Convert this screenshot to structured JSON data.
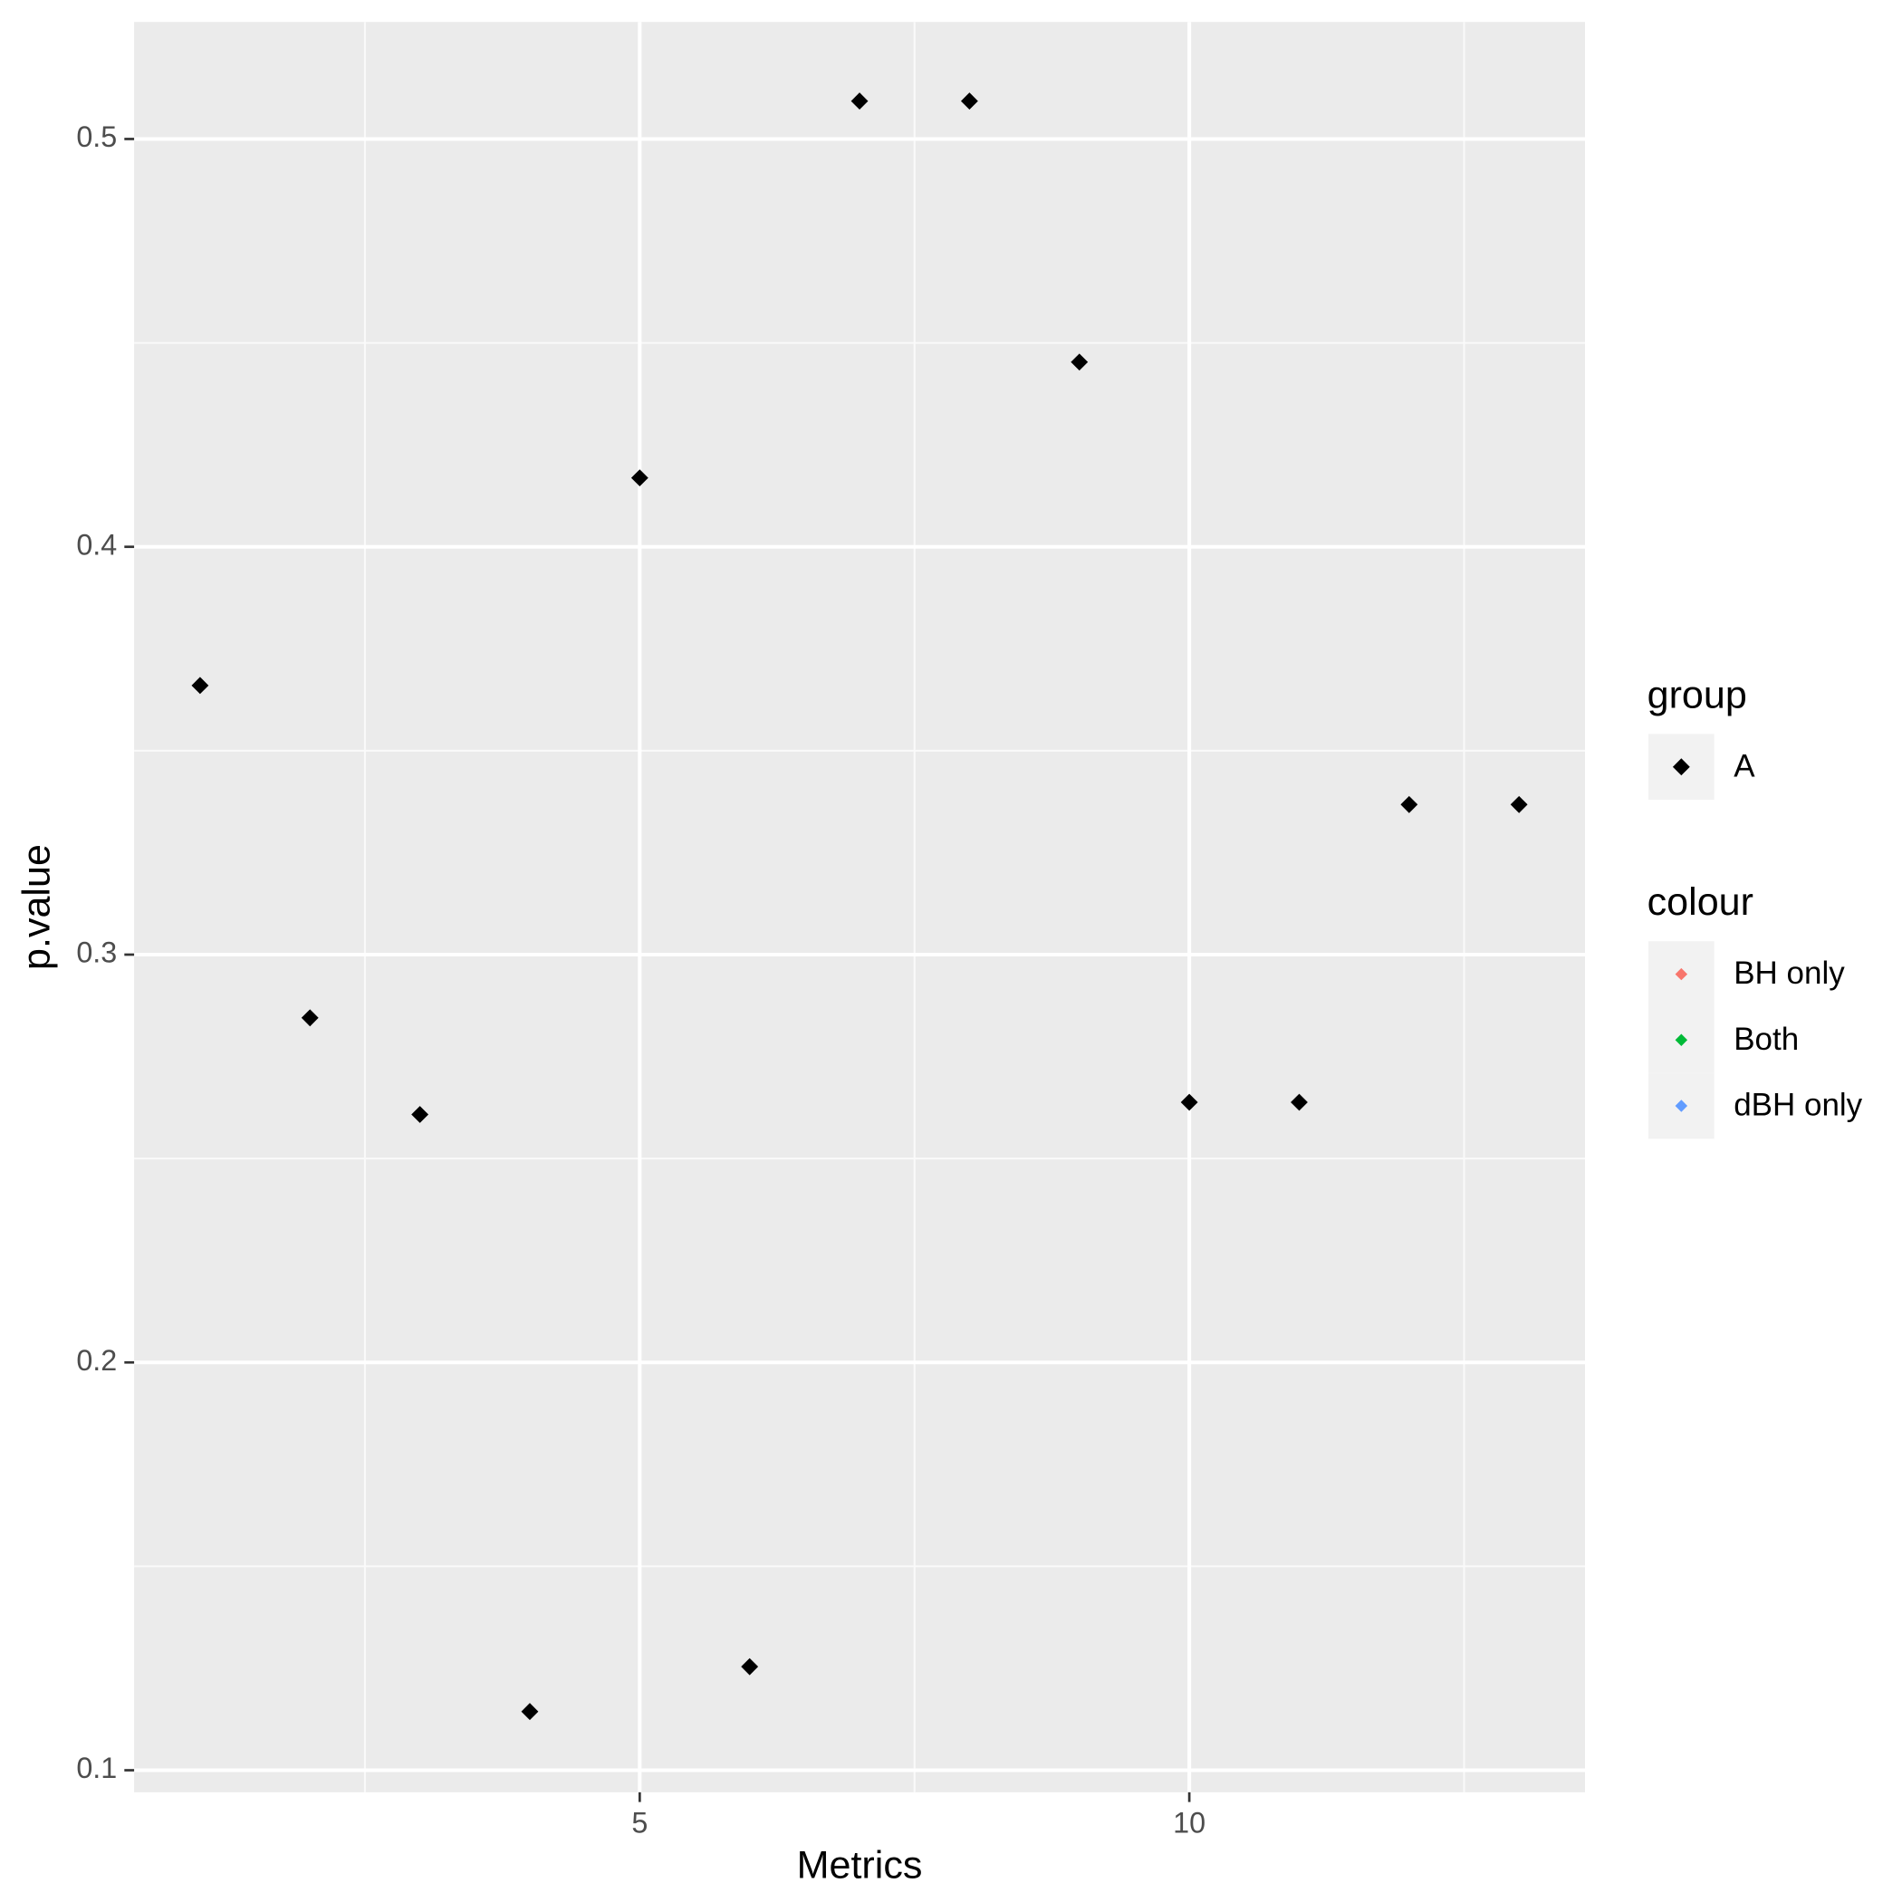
{
  "chart_data": {
    "type": "scatter",
    "x_label": "Metrics",
    "y_label": "p.value",
    "x": [
      1,
      2,
      3,
      4,
      5,
      6,
      7,
      8,
      9,
      10,
      11,
      12,
      13
    ],
    "series": [
      {
        "name": "A",
        "color": "#000000",
        "marker": "diamond",
        "values": [
          0.366,
          0.2845,
          0.2608,
          0.1144,
          0.4169,
          0.1254,
          0.5093,
          0.5093,
          0.4453,
          0.2638,
          0.2638,
          0.3368,
          0.3368
        ]
      }
    ],
    "xlim": [
      0.4,
      13.6
    ],
    "ylim": [
      0.0946,
      0.5287
    ],
    "xticks": [
      5,
      10
    ],
    "yticks": [
      0.1,
      0.2,
      0.3,
      0.4,
      0.5
    ],
    "grid": true,
    "legend_title": "group",
    "colour_legend": {
      "title": "colour",
      "entries": [
        {
          "name": "BH only",
          "color": "#F8766D"
        },
        {
          "name": "Both",
          "color": "#00BA38"
        },
        {
          "name": "dBH only",
          "color": "#619CFF"
        }
      ]
    }
  }
}
